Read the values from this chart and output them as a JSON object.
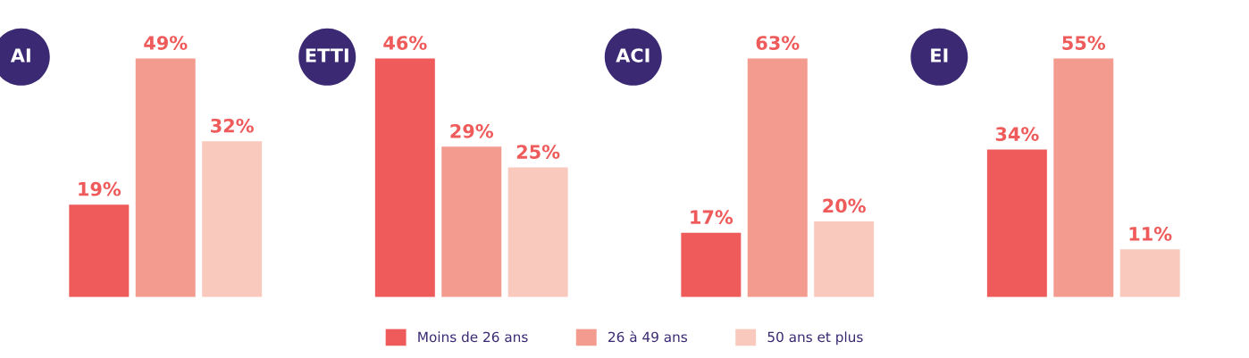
{
  "chart_data": [
    {
      "type": "bar",
      "title": "AI",
      "categories": [
        null
      ],
      "legend": "bottom",
      "series": [
        {
          "name": "Moins de 26 ans",
          "color": "#ef5a5a",
          "values": [
            19
          ],
          "value_labels": [
            "19%"
          ]
        },
        {
          "name": "26 à 49 ans",
          "color": "#f39b8e",
          "values": [
            49
          ],
          "value_labels": [
            "49%"
          ]
        },
        {
          "name": "50 ans et plus",
          "color": "#f9c9bd",
          "values": [
            32
          ],
          "value_labels": [
            "32%"
          ]
        }
      ]
    },
    {
      "type": "bar",
      "title": "ETTI",
      "categories": [
        null
      ],
      "series": [
        {
          "color": "#ef5a5a",
          "values": [
            46
          ],
          "value_labels": [
            "46%"
          ]
        },
        {
          "color": "#f39b8e",
          "values": [
            29
          ],
          "value_labels": [
            "29%"
          ]
        },
        {
          "color": "#f9c9bd",
          "values": [
            25
          ],
          "value_labels": [
            "25%"
          ]
        }
      ]
    },
    {
      "type": "bar",
      "title": "ACI",
      "categories": [
        null
      ],
      "series": [
        {
          "color": "#ef5a5a",
          "values": [
            17
          ],
          "value_labels": [
            "17%"
          ]
        },
        {
          "color": "#f39b8e",
          "values": [
            63
          ],
          "value_labels": [
            "63%"
          ]
        },
        {
          "color": "#f9c9bd",
          "values": [
            20
          ],
          "value_labels": [
            "20%"
          ]
        }
      ]
    },
    {
      "type": "bar",
      "title": "EI",
      "categories": [
        null
      ],
      "series": [
        {
          "color": "#ef5a5a",
          "values": [
            34
          ],
          "value_labels": [
            "34%"
          ]
        },
        {
          "color": "#f39b8e",
          "values": [
            55
          ],
          "value_labels": [
            "55%"
          ]
        },
        {
          "color": "#f9c9bd",
          "values": [
            11
          ],
          "value_labels": [
            "11%"
          ]
        }
      ]
    }
  ]
}
